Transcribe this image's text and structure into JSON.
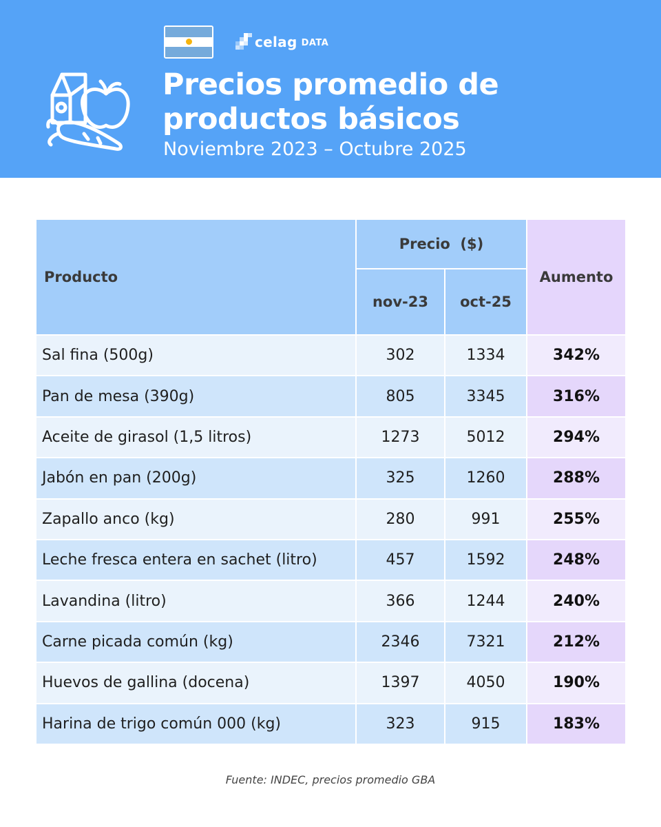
{
  "header": {
    "logo_text": "celag",
    "logo_sub": "DATA",
    "title_line1": "Precios promedio de",
    "title_line2": "productos básicos",
    "subtitle": "Noviembre 2023 – Octubre 2025",
    "flag_icon": "argentina-flag-icon",
    "illustration_icon": "groceries-icon"
  },
  "colors": {
    "header_bg": "#55a3f7",
    "table_header_blue": "#a2cdfa",
    "table_header_purple": "#e5d6fc",
    "row_blue_light": "#eaf3fc",
    "row_blue_dark": "#cfe5fb",
    "row_purple_light": "#f1ebfd",
    "row_purple_dark": "#e5d7fb"
  },
  "table": {
    "col_product": "Producto",
    "col_price_group": "Precio  ($)",
    "col_nov": "nov-23",
    "col_oct": "oct-25",
    "col_increase": "Aumento"
  },
  "chart_data": {
    "type": "table",
    "title": "Precios promedio de productos básicos",
    "subtitle": "Noviembre 2023 – Octubre 2025",
    "columns": [
      "Producto",
      "nov-23",
      "oct-25",
      "Aumento"
    ],
    "rows": [
      {
        "product": "Sal fina (500g)",
        "nov23": "302",
        "oct25": "1334",
        "increase": "342%"
      },
      {
        "product": "Pan de mesa (390g)",
        "nov23": "805",
        "oct25": "3345",
        "increase": "316%"
      },
      {
        "product": "Aceite de girasol (1,5 litros)",
        "nov23": "1273",
        "oct25": "5012",
        "increase": "294%"
      },
      {
        "product": "Jabón en pan (200g)",
        "nov23": "325",
        "oct25": "1260",
        "increase": "288%"
      },
      {
        "product": "Zapallo anco (kg)",
        "nov23": "280",
        "oct25": "991",
        "increase": "255%"
      },
      {
        "product": "Leche fresca entera en sachet (litro)",
        "nov23": "457",
        "oct25": "1592",
        "increase": "248%"
      },
      {
        "product": "Lavandina (litro)",
        "nov23": "366",
        "oct25": "1244",
        "increase": "240%"
      },
      {
        "product": "Carne picada común (kg)",
        "nov23": "2346",
        "oct25": "7321",
        "increase": "212%"
      },
      {
        "product": "Huevos de gallina (docena)",
        "nov23": "1397",
        "oct25": "4050",
        "increase": "190%"
      },
      {
        "product": "Harina de trigo común 000 (kg)",
        "nov23": "323",
        "oct25": "915",
        "increase": "183%"
      }
    ]
  },
  "footer": {
    "source": "Fuente: INDEC, precios promedio GBA"
  }
}
